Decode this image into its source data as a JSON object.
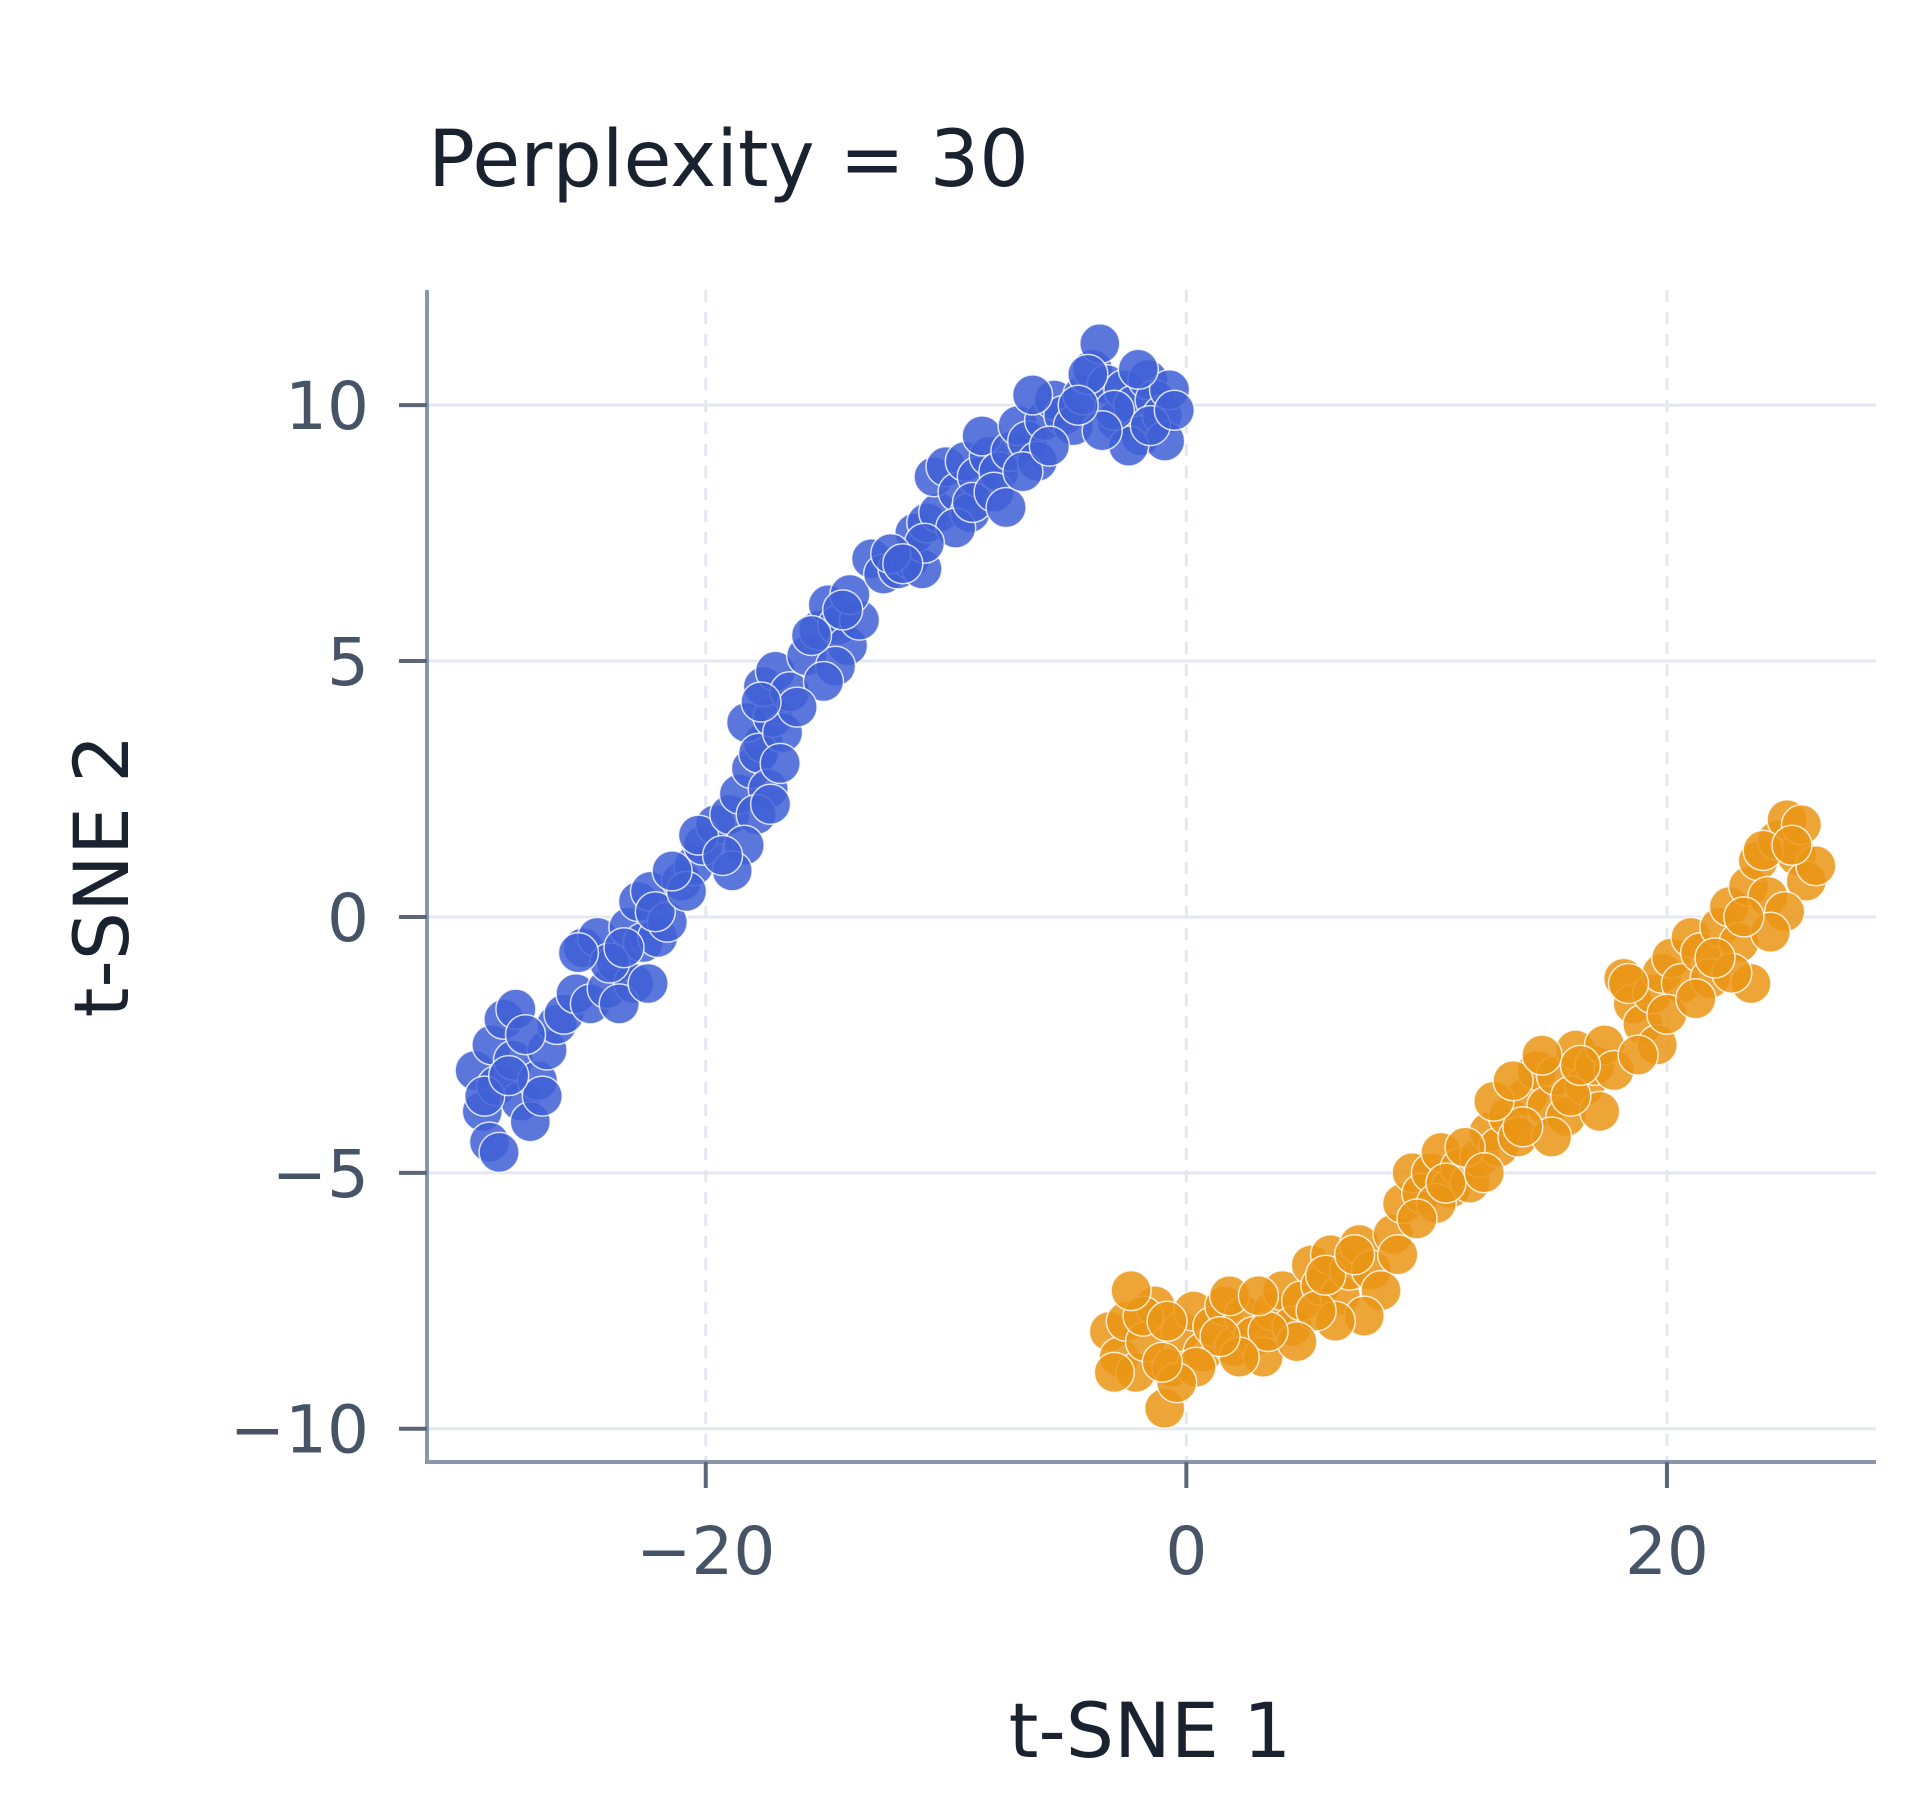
{
  "chart_data": {
    "type": "scatter",
    "title": "Perplexity = 30",
    "xlabel": "t-SNE 1",
    "ylabel": "t-SNE 2",
    "xlim": [
      -31.6,
      28.7
    ],
    "ylim": [
      -10.65,
      12.25
    ],
    "xticks": [
      -20,
      0,
      20
    ],
    "xtick_labels": [
      "−20",
      "0",
      "20"
    ],
    "yticks": [
      10,
      5,
      0,
      -5,
      -10
    ],
    "ytick_labels": [
      "10",
      "5",
      "0",
      "−5",
      "−10"
    ],
    "grid": true,
    "legend": "none",
    "colors": {
      "series_1": "#3f5fd6",
      "series_2": "#ea9515",
      "point_edge": "#ffffff",
      "grid": "#e3e8f0",
      "spine": "#8a97aa"
    },
    "series": [
      {
        "color": "#3f5fd6",
        "points": [
          [
            -29.6,
            -3.0
          ],
          [
            -29.3,
            -3.8
          ],
          [
            -29.0,
            -4.4
          ],
          [
            -28.7,
            -3.3
          ],
          [
            -28.9,
            -2.5
          ],
          [
            -28.4,
            -2.0
          ],
          [
            -28.0,
            -2.8
          ],
          [
            -27.7,
            -3.6
          ],
          [
            -27.3,
            -4.0
          ],
          [
            -27.0,
            -3.2
          ],
          [
            -26.6,
            -2.6
          ],
          [
            -26.2,
            -2.1
          ],
          [
            -27.9,
            -1.8
          ],
          [
            -28.6,
            -4.6
          ],
          [
            -29.2,
            -3.5
          ],
          [
            -26.8,
            -3.5
          ],
          [
            -27.5,
            -2.3
          ],
          [
            -28.2,
            -3.1
          ],
          [
            -25.9,
            -1.9
          ],
          [
            -25.4,
            -1.5
          ],
          [
            -24.8,
            -1.7
          ],
          [
            -24.1,
            -1.4
          ],
          [
            -25.1,
            -0.6
          ],
          [
            -24.5,
            -0.4
          ],
          [
            -23.7,
            -0.9
          ],
          [
            -23.2,
            -0.2
          ],
          [
            -22.6,
            -0.5
          ],
          [
            -22.0,
            -0.4
          ],
          [
            -22.8,
            0.3
          ],
          [
            -22.3,
            0.5
          ],
          [
            -23.0,
            -1.3
          ],
          [
            -23.6,
            -1.7
          ],
          [
            -22.4,
            -1.3
          ],
          [
            -24.0,
            -0.9
          ],
          [
            -21.6,
            -0.1
          ],
          [
            -22.1,
            0.1
          ],
          [
            -21.0,
            0.7
          ],
          [
            -20.5,
            1.0
          ],
          [
            -20.1,
            1.4
          ],
          [
            -19.6,
            1.8
          ],
          [
            -20.8,
            0.5
          ],
          [
            -20.3,
            1.6
          ],
          [
            -19.0,
            2.0
          ],
          [
            -18.6,
            2.4
          ],
          [
            -18.1,
            2.9
          ],
          [
            -17.6,
            3.4
          ],
          [
            -18.3,
            3.8
          ],
          [
            -17.8,
            3.2
          ],
          [
            -17.2,
            3.9
          ],
          [
            -16.8,
            3.6
          ],
          [
            -17.4,
            2.5
          ],
          [
            -17.9,
            2.0
          ],
          [
            -18.4,
            1.4
          ],
          [
            -18.9,
            0.9
          ],
          [
            -17.6,
            4.5
          ],
          [
            -17.1,
            4.8
          ],
          [
            -16.5,
            4.4
          ],
          [
            -15.8,
            5.1
          ],
          [
            -15.3,
            5.6
          ],
          [
            -14.9,
            6.1
          ],
          [
            -14.5,
            5.7
          ],
          [
            -14.1,
            5.3
          ],
          [
            -14.6,
            4.9
          ],
          [
            -15.1,
            4.6
          ],
          [
            -13.6,
            5.8
          ],
          [
            -14.0,
            6.3
          ],
          [
            -15.6,
            5.5
          ],
          [
            -16.2,
            4.1
          ],
          [
            -16.9,
            3.0
          ],
          [
            -17.3,
            2.2
          ],
          [
            -17.7,
            4.2
          ],
          [
            -14.3,
            6.0
          ],
          [
            -13.1,
            7.0
          ],
          [
            -12.6,
            6.7
          ],
          [
            -12.0,
            6.8
          ],
          [
            -11.5,
            7.0
          ],
          [
            -11.0,
            6.8
          ],
          [
            -11.3,
            7.5
          ],
          [
            -10.8,
            7.7
          ],
          [
            -10.3,
            7.9
          ],
          [
            -10.5,
            8.6
          ],
          [
            -10.0,
            8.8
          ],
          [
            -9.5,
            8.3
          ],
          [
            -9.0,
            7.9
          ],
          [
            -9.6,
            7.6
          ],
          [
            -10.9,
            7.3
          ],
          [
            -9.2,
            8.9
          ],
          [
            -8.7,
            8.6
          ],
          [
            -8.2,
            9.0
          ],
          [
            -8.5,
            9.4
          ],
          [
            -7.8,
            8.7
          ],
          [
            -7.3,
            9.1
          ],
          [
            -7.0,
            9.6
          ],
          [
            -6.6,
            9.3
          ],
          [
            -6.2,
            8.9
          ],
          [
            -5.9,
            9.7
          ],
          [
            -5.5,
            10.1
          ],
          [
            -5.1,
            9.8
          ],
          [
            -6.4,
            10.2
          ],
          [
            -4.7,
            9.6
          ],
          [
            -4.3,
            10.2
          ],
          [
            -3.9,
            10.7
          ],
          [
            -3.6,
            11.2
          ],
          [
            -3.3,
            10.4
          ],
          [
            -2.9,
            9.7
          ],
          [
            -2.6,
            10.3
          ],
          [
            -2.2,
            10.0
          ],
          [
            -1.9,
            9.4
          ],
          [
            -1.6,
            10.5
          ],
          [
            -1.3,
            10.1
          ],
          [
            -1.0,
            9.8
          ],
          [
            -0.7,
            10.3
          ],
          [
            -0.9,
            9.3
          ],
          [
            -2.4,
            9.2
          ],
          [
            -3.0,
            9.9
          ],
          [
            -1.5,
            9.6
          ],
          [
            -0.5,
            9.9
          ],
          [
            -3.5,
            9.5
          ],
          [
            -4.1,
            10.6
          ],
          [
            -2.0,
            10.7
          ],
          [
            -8.9,
            8.1
          ],
          [
            -8.0,
            8.3
          ],
          [
            -7.5,
            8.0
          ],
          [
            -6.8,
            8.7
          ],
          [
            -5.7,
            9.2
          ],
          [
            -4.5,
            10.0
          ],
          [
            -12.3,
            7.1
          ],
          [
            -11.8,
            6.9
          ],
          [
            -19.3,
            1.2
          ],
          [
            -21.4,
            0.9
          ],
          [
            -23.4,
            -0.6
          ],
          [
            -25.3,
            -0.7
          ]
        ]
      },
      {
        "color": "#ea9515",
        "points": [
          [
            -3.2,
            -8.1
          ],
          [
            -2.8,
            -8.6
          ],
          [
            -2.5,
            -7.9
          ],
          [
            -2.1,
            -8.9
          ],
          [
            -1.7,
            -8.3
          ],
          [
            -1.3,
            -7.6
          ],
          [
            -0.9,
            -9.6
          ],
          [
            -0.6,
            -8.8
          ],
          [
            -0.2,
            -8.1
          ],
          [
            0.3,
            -7.7
          ],
          [
            0.7,
            -8.5
          ],
          [
            1.1,
            -8.0
          ],
          [
            1.6,
            -7.6
          ],
          [
            2.0,
            -8.4
          ],
          [
            2.4,
            -7.8
          ],
          [
            2.8,
            -8.2
          ],
          [
            3.2,
            -8.6
          ],
          [
            3.6,
            -7.7
          ],
          [
            4.0,
            -7.3
          ],
          [
            4.4,
            -8.0
          ],
          [
            4.8,
            -7.5
          ],
          [
            5.2,
            -6.8
          ],
          [
            5.6,
            -7.2
          ],
          [
            6.0,
            -6.6
          ],
          [
            6.4,
            -7.4
          ],
          [
            6.8,
            -6.9
          ],
          [
            7.2,
            -6.4
          ],
          [
            7.7,
            -6.9
          ],
          [
            8.1,
            -7.3
          ],
          [
            8.6,
            -6.2
          ],
          [
            9.0,
            -5.6
          ],
          [
            9.4,
            -5.0
          ],
          [
            9.8,
            -5.4
          ],
          [
            10.2,
            -5.0
          ],
          [
            10.6,
            -4.6
          ],
          [
            11.0,
            -5.3
          ],
          [
            11.4,
            -4.9
          ],
          [
            11.8,
            -5.2
          ],
          [
            12.2,
            -4.7
          ],
          [
            12.6,
            -4.2
          ],
          [
            13.0,
            -4.5
          ],
          [
            13.4,
            -3.9
          ],
          [
            13.8,
            -4.3
          ],
          [
            14.2,
            -3.5
          ],
          [
            14.6,
            -3.0
          ],
          [
            15.0,
            -3.7
          ],
          [
            15.4,
            -3.1
          ],
          [
            15.8,
            -3.9
          ],
          [
            16.2,
            -2.6
          ],
          [
            16.6,
            -3.3
          ],
          [
            17.0,
            -2.9
          ],
          [
            17.4,
            -2.5
          ],
          [
            17.8,
            -3.0
          ],
          [
            18.2,
            -1.2
          ],
          [
            18.6,
            -1.7
          ],
          [
            19.0,
            -2.1
          ],
          [
            19.4,
            -1.5
          ],
          [
            19.8,
            -1.1
          ],
          [
            20.2,
            -0.8
          ],
          [
            20.6,
            -1.3
          ],
          [
            21.0,
            -0.4
          ],
          [
            21.4,
            -0.7
          ],
          [
            21.8,
            -1.2
          ],
          [
            22.2,
            -0.2
          ],
          [
            22.6,
            0.2
          ],
          [
            23.0,
            -0.5
          ],
          [
            23.4,
            0.6
          ],
          [
            23.8,
            1.1
          ],
          [
            24.2,
            0.4
          ],
          [
            24.6,
            1.5
          ],
          [
            25.0,
            1.9
          ],
          [
            25.4,
            1.2
          ],
          [
            25.8,
            0.7
          ],
          [
            26.2,
            1.0
          ],
          [
            24.9,
            0.1
          ],
          [
            24.3,
            -0.3
          ],
          [
            23.5,
            -1.3
          ],
          [
            22.7,
            -1.1
          ],
          [
            25.6,
            1.8
          ],
          [
            24.0,
            1.3
          ],
          [
            19.6,
            -2.5
          ],
          [
            20.0,
            -1.9
          ],
          [
            18.8,
            -2.7
          ],
          [
            17.2,
            -3.8
          ],
          [
            15.2,
            -4.3
          ],
          [
            14.0,
            -4.1
          ],
          [
            12.8,
            -3.6
          ],
          [
            13.6,
            -3.2
          ],
          [
            14.8,
            -2.7
          ],
          [
            16.0,
            -3.5
          ],
          [
            11.6,
            -4.5
          ],
          [
            10.4,
            -5.6
          ],
          [
            9.6,
            -5.9
          ],
          [
            8.8,
            -6.6
          ],
          [
            7.4,
            -7.8
          ],
          [
            6.2,
            -7.9
          ],
          [
            5.4,
            -7.7
          ],
          [
            4.6,
            -8.3
          ],
          [
            3.4,
            -8.1
          ],
          [
            2.2,
            -8.6
          ],
          [
            1.4,
            -8.2
          ],
          [
            0.4,
            -8.8
          ],
          [
            -0.4,
            -9.1
          ],
          [
            -1.0,
            -8.7
          ],
          [
            -1.8,
            -7.8
          ],
          [
            -2.3,
            -7.3
          ],
          [
            -3.0,
            -8.9
          ],
          [
            -0.8,
            -7.9
          ],
          [
            1.8,
            -7.4
          ],
          [
            3.0,
            -7.4
          ],
          [
            5.8,
            -7.0
          ],
          [
            7.0,
            -6.6
          ],
          [
            10.8,
            -5.2
          ],
          [
            12.4,
            -5.0
          ],
          [
            16.4,
            -2.9
          ],
          [
            18.4,
            -1.3
          ],
          [
            21.2,
            -1.6
          ],
          [
            22.0,
            -0.8
          ],
          [
            23.2,
            0.0
          ],
          [
            25.2,
            1.4
          ]
        ]
      }
    ]
  }
}
